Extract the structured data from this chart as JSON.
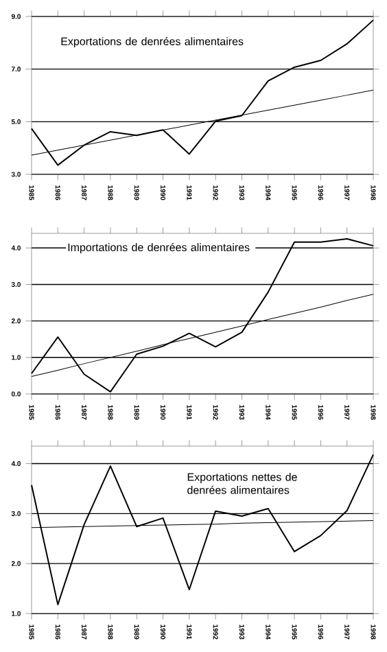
{
  "chart_data": [
    {
      "type": "line",
      "title": "Exportations de denrées alimentaires",
      "x": [
        1985,
        1986,
        1987,
        1988,
        1989,
        1990,
        1991,
        1992,
        1993,
        1994,
        1995,
        1996,
        1997,
        1998
      ],
      "xlim": [
        1985,
        1998
      ],
      "xticks": [
        1985,
        1986,
        1987,
        1988,
        1989,
        1990,
        1991,
        1992,
        1993,
        1994,
        1995,
        1996,
        1997,
        1998
      ],
      "ylim": [
        3,
        9
      ],
      "yticks": [
        {
          "value": 3,
          "label": "3.0"
        },
        {
          "value": 5,
          "label": "5.0"
        },
        {
          "value": 7,
          "label": "7.0"
        },
        {
          "value": 9,
          "label": "9.0"
        }
      ],
      "grid": "y",
      "series": [
        {
          "color": "#000000",
          "values": [
            4.74,
            3.35,
            4.11,
            4.62,
            4.48,
            4.69,
            3.77,
            5.02,
            5.23,
            6.55,
            7.07,
            7.33,
            7.96,
            8.86
          ]
        },
        {
          "color": "#000000",
          "values": [
            3.73,
            3.92,
            4.11,
            4.3,
            4.49,
            4.68,
            4.87,
            5.06,
            5.25,
            5.44,
            5.63,
            5.82,
            6.01,
            6.2
          ]
        }
      ]
    },
    {
      "type": "line",
      "title": "Importations de denrées alimentaires",
      "x": [
        1985,
        1986,
        1987,
        1988,
        1989,
        1990,
        1991,
        1992,
        1993,
        1994,
        1995,
        1996,
        1997,
        1998
      ],
      "xlim": [
        1985,
        1998
      ],
      "xticks": [
        1985,
        1986,
        1987,
        1988,
        1989,
        1990,
        1991,
        1992,
        1993,
        1994,
        1995,
        1996,
        1997,
        1998
      ],
      "ylim": [
        0,
        4.4
      ],
      "yticks": [
        {
          "value": 0,
          "label": "0.0"
        },
        {
          "value": 1,
          "label": "1.0"
        },
        {
          "value": 2,
          "label": "2.0"
        },
        {
          "value": 3,
          "label": "3.0"
        },
        {
          "value": 4,
          "label": "4.0"
        }
      ],
      "grid": "y",
      "series": [
        {
          "color": "#000000",
          "values": [
            0.56,
            1.56,
            0.54,
            0.06,
            1.09,
            1.31,
            1.66,
            1.29,
            1.69,
            2.79,
            4.16,
            4.16,
            4.25,
            4.06
          ]
        },
        {
          "color": "#000000",
          "values": [
            0.48,
            0.65,
            0.83,
            1.0,
            1.17,
            1.35,
            1.52,
            1.69,
            1.86,
            2.04,
            2.21,
            2.38,
            2.56,
            2.73
          ]
        }
      ]
    },
    {
      "type": "line",
      "title": "Exportations nettes de denrées alimentaires",
      "x": [
        1985,
        1986,
        1987,
        1988,
        1989,
        1990,
        1991,
        1992,
        1993,
        1994,
        1995,
        1996,
        1997,
        1998
      ],
      "xlim": [
        1985,
        1998
      ],
      "xticks": [
        1985,
        1986,
        1987,
        1988,
        1989,
        1990,
        1991,
        1992,
        1993,
        1994,
        1995,
        1996,
        1997,
        1998
      ],
      "ylim": [
        1,
        4.35
      ],
      "yticks": [
        {
          "value": 1,
          "label": "1.0"
        },
        {
          "value": 2,
          "label": "2.0"
        },
        {
          "value": 3,
          "label": "3.0"
        },
        {
          "value": 4,
          "label": "4.0"
        }
      ],
      "grid": "y",
      "series": [
        {
          "color": "#000000",
          "values": [
            3.57,
            1.18,
            2.78,
            3.95,
            2.74,
            2.91,
            1.48,
            3.05,
            2.95,
            3.1,
            2.24,
            2.56,
            3.06,
            4.18
          ]
        },
        {
          "color": "#000000",
          "values": [
            2.72,
            2.73,
            2.74,
            2.75,
            2.76,
            2.77,
            2.78,
            2.79,
            2.81,
            2.82,
            2.83,
            2.84,
            2.85,
            2.86
          ]
        }
      ]
    }
  ]
}
